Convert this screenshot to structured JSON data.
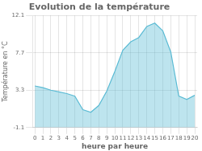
{
  "chart_data": {
    "type": "area",
    "title": "Evolution de la température",
    "xlabel": "heure par heure",
    "ylabel": "Température en °C",
    "x": [
      0,
      1,
      2,
      3,
      4,
      5,
      6,
      7,
      8,
      9,
      10,
      11,
      12,
      13,
      14,
      15,
      16,
      17,
      18,
      19,
      20
    ],
    "values": [
      3.8,
      3.6,
      3.3,
      3.1,
      2.9,
      2.6,
      1.0,
      0.7,
      1.5,
      3.2,
      5.5,
      8.0,
      9.0,
      9.5,
      10.8,
      11.2,
      10.3,
      7.8,
      2.6,
      2.2,
      2.7
    ],
    "color": "#5bbbd4",
    "xlim": [
      -0.3,
      20.3
    ],
    "xticks": [
      0,
      1,
      2,
      3,
      4,
      5,
      6,
      7,
      8,
      9,
      10,
      11,
      12,
      13,
      14,
      15,
      16,
      17,
      18,
      19,
      20
    ],
    "ylim": [
      -1.1,
      12.1
    ],
    "yticks": [
      -1.1,
      3.3,
      7.7,
      12.1
    ],
    "grid": true
  }
}
